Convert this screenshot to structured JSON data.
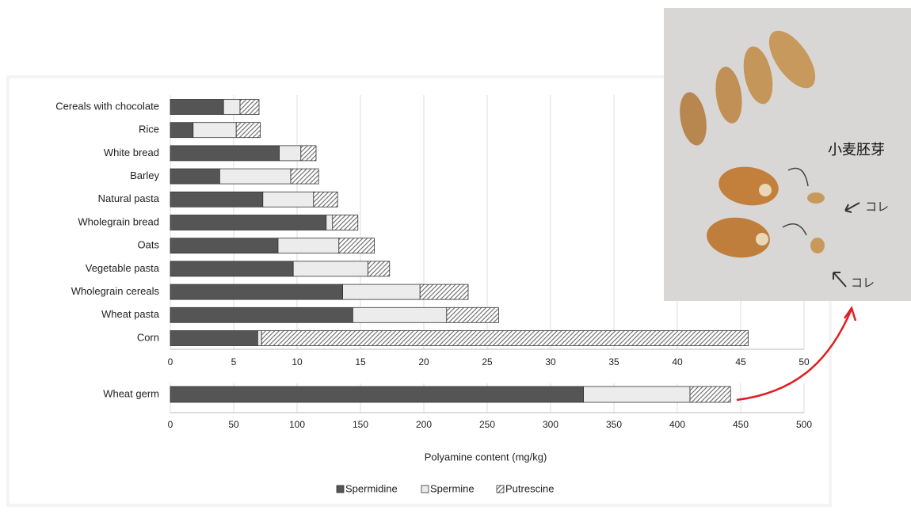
{
  "chart_data": [
    {
      "type": "stacked-barh",
      "categories": [
        "Cereals with chocolate",
        "Rice",
        "White bread",
        "Barley",
        "Natural pasta",
        "Wholegrain bread",
        "Oats",
        "Vegetable pasta",
        "Wholegrain cereals",
        "Wheat pasta",
        "Corn"
      ],
      "series": [
        {
          "name": "Spermidine",
          "color": "#555555",
          "values": [
            4.2,
            1.8,
            8.6,
            3.9,
            7.3,
            12.3,
            8.5,
            9.7,
            13.6,
            14.4,
            6.9
          ]
        },
        {
          "name": "Spermine",
          "color": "#ececec",
          "values": [
            1.3,
            3.4,
            1.7,
            5.6,
            4.0,
            0.5,
            4.8,
            5.9,
            6.1,
            7.4,
            0.3
          ]
        },
        {
          "name": "Putrescine",
          "color": "#777777",
          "hatch": true,
          "values": [
            1.5,
            1.9,
            1.2,
            2.2,
            1.9,
            2.0,
            2.8,
            1.7,
            3.8,
            4.1,
            38.4
          ]
        }
      ],
      "xlim": [
        0,
        50
      ],
      "xticks": [
        0,
        5,
        10,
        15,
        20,
        25,
        30,
        35,
        40,
        45,
        50
      ],
      "grid": true
    },
    {
      "type": "stacked-barh",
      "categories": [
        "Wheat germ"
      ],
      "series": [
        {
          "color": "#555555",
          "values": [
            326
          ]
        },
        {
          "color": "#ececec",
          "values": [
            84
          ]
        },
        {
          "color": "#777777",
          "hatch": true,
          "values": [
            32
          ]
        }
      ],
      "xlim": [
        0,
        500
      ],
      "xticks": [
        0,
        50,
        100,
        150,
        200,
        250,
        300,
        350,
        400,
        450,
        500
      ],
      "grid": true,
      "xlabel": "Polyamine content (mg/kg)"
    }
  ],
  "photo_annotations": [
    "小麦胚芽",
    "コレ",
    "コレ"
  ]
}
